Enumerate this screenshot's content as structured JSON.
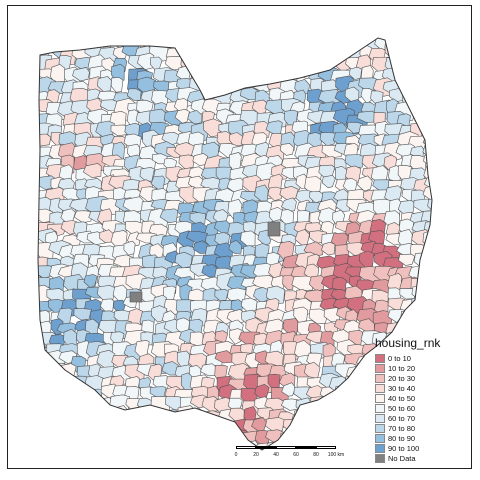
{
  "legend": {
    "title": "housing_rnk",
    "items": [
      {
        "label": "0 to 10",
        "color": "#d2707f"
      },
      {
        "label": "10 to 20",
        "color": "#e19a9d"
      },
      {
        "label": "20 to 30",
        "color": "#efc0bd"
      },
      {
        "label": "30 to 40",
        "color": "#f8ddd8"
      },
      {
        "label": "40 to 50",
        "color": "#fbf4f1"
      },
      {
        "label": "50 to 60",
        "color": "#f1f6f9"
      },
      {
        "label": "60 to 70",
        "color": "#dbe9f3"
      },
      {
        "label": "70 to 80",
        "color": "#bcd6ea"
      },
      {
        "label": "80 to 90",
        "color": "#95bfde"
      },
      {
        "label": "90 to 100",
        "color": "#6d9fcf"
      },
      {
        "label": "No Data",
        "color": "#808080"
      }
    ]
  },
  "scalebar": {
    "ticks": [
      "0",
      "20",
      "40",
      "60",
      "80",
      "100 km"
    ]
  }
}
